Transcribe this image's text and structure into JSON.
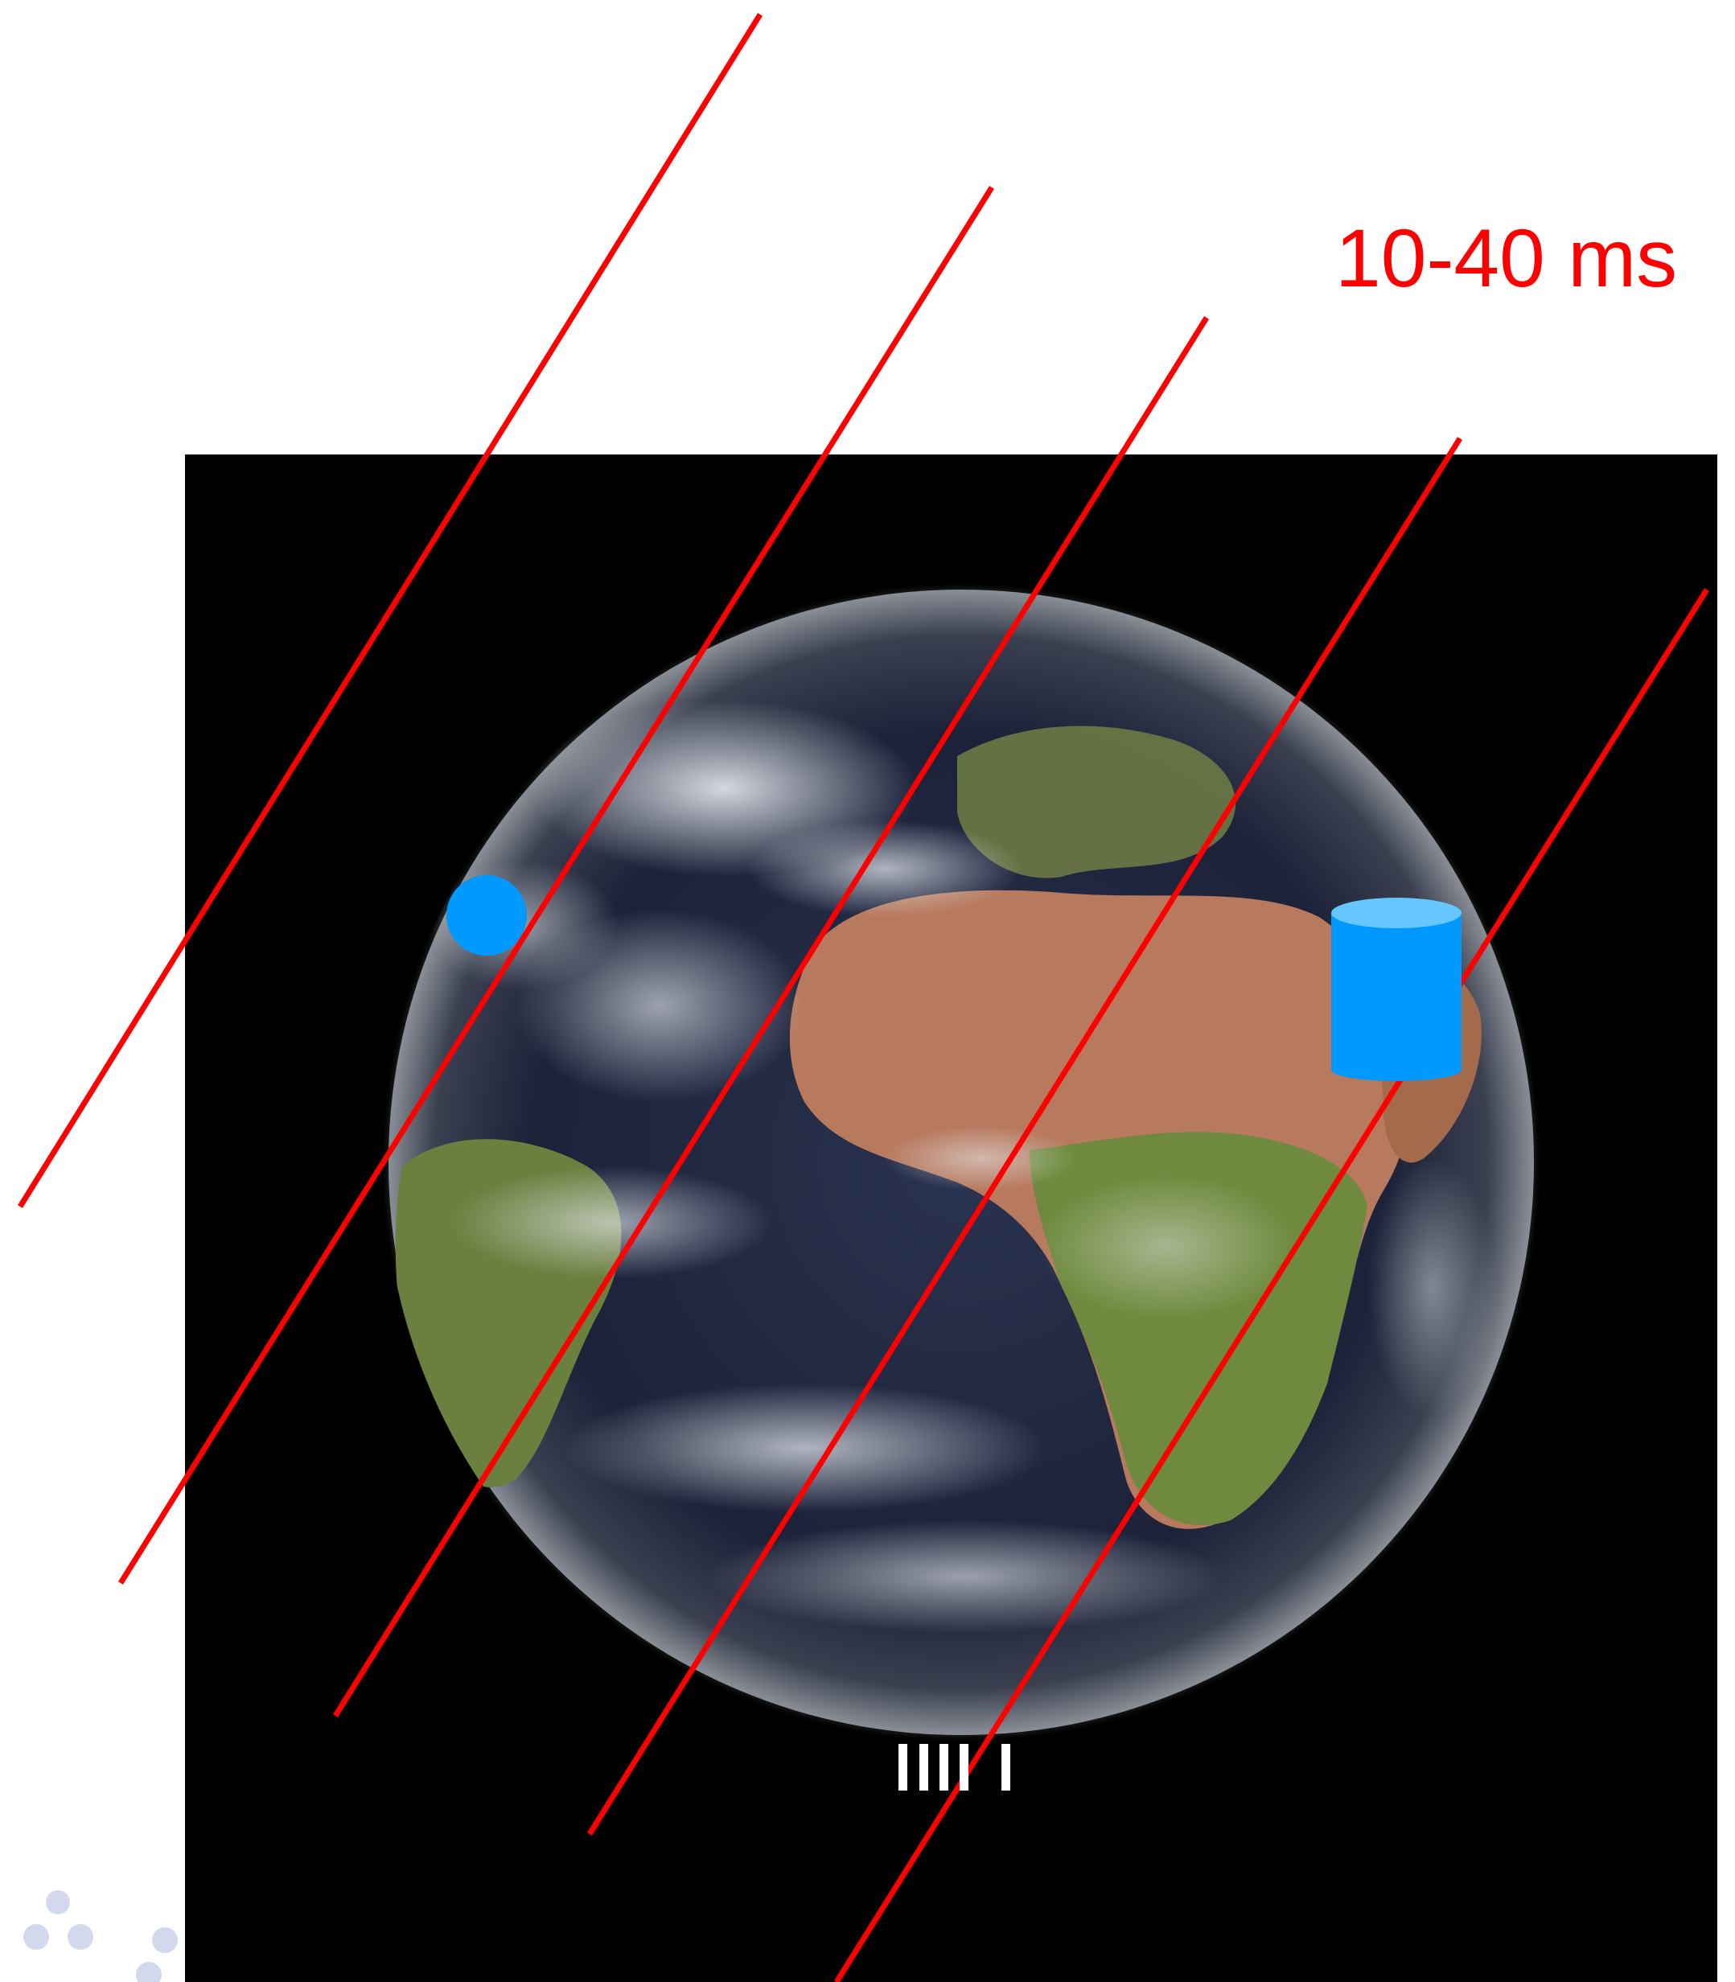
{
  "annotation": {
    "latency_text": "10-40 ms"
  },
  "colors": {
    "background": "#ffffff",
    "space": "#000000",
    "light_ray": "#ff0000",
    "markers": "#0099ff",
    "marker_top": "#66c7ff"
  },
  "icons": {
    "client": "circle-marker-icon",
    "server": "database-cylinder-icon",
    "ground_station": "bar-stack-icon",
    "logo": "dot-cluster-logo-icon"
  }
}
